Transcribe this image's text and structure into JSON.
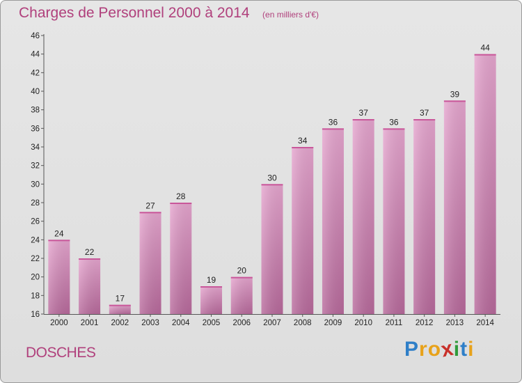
{
  "chart_data": {
    "type": "bar",
    "title": "Charges de Personnel 2000 à 2014",
    "subtitle": "(en milliers d'€)",
    "categories": [
      "2000",
      "2001",
      "2002",
      "2003",
      "2004",
      "2005",
      "2006",
      "2007",
      "2008",
      "2009",
      "2010",
      "2011",
      "2012",
      "2013",
      "2014"
    ],
    "values": [
      24,
      22,
      17,
      27,
      28,
      19,
      20,
      30,
      34,
      36,
      37,
      36,
      37,
      39,
      44
    ],
    "ylim": [
      16,
      46
    ],
    "yticks": [
      16,
      18,
      20,
      22,
      24,
      26,
      28,
      30,
      32,
      34,
      36,
      38,
      40,
      42,
      44,
      46
    ],
    "grid": false,
    "bar_color": "#d98ab8",
    "text_color": "#b0407c"
  },
  "commune": "DOSCHES",
  "brand": {
    "letters": [
      "P",
      "r",
      "o",
      "x",
      "i",
      "t",
      "i"
    ],
    "colors": [
      "#2f7fc8",
      "#e8a21a",
      "#e8a21a",
      "#c8302a",
      "#2f9a3a",
      "#2f7fc8",
      "#e8a21a"
    ]
  }
}
